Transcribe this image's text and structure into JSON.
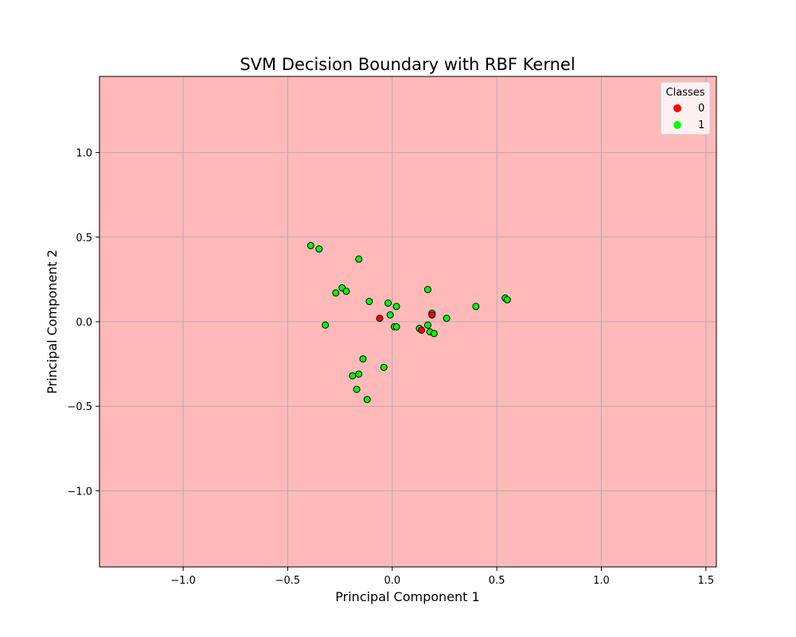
{
  "chart_data": {
    "type": "scatter",
    "title": "SVM Decision Boundary with RBF Kernel",
    "xlabel": "Principal Component 1",
    "ylabel": "Principal Component 2",
    "xlim": [
      -1.4,
      1.55
    ],
    "ylim": [
      -1.45,
      1.45
    ],
    "xticks": [
      -1.0,
      -0.5,
      0.0,
      0.5,
      1.0,
      1.5
    ],
    "xtick_labels": [
      "−1.0",
      "−0.5",
      "0.0",
      "0.5",
      "1.0",
      "1.5"
    ],
    "yticks": [
      -1.0,
      -0.5,
      0.0,
      0.5,
      1.0
    ],
    "ytick_labels": [
      "−1.0",
      "−0.5",
      "0.0",
      "0.5",
      "1.0"
    ],
    "grid": true,
    "background_region_color": "#ffb9b9",
    "legend": {
      "title": "Classes",
      "placement": "top-right",
      "entries": [
        {
          "label": "0",
          "color": "#ff0000"
        },
        {
          "label": "1",
          "color": "#00ff00"
        }
      ]
    },
    "series": [
      {
        "name": "0",
        "color": "#ff0000",
        "points": [
          [
            -0.06,
            0.02
          ],
          [
            0.19,
            0.04
          ],
          [
            0.14,
            -0.05
          ]
        ]
      },
      {
        "name": "1",
        "color": "#00ff00",
        "points": [
          [
            -0.39,
            0.45
          ],
          [
            -0.35,
            0.43
          ],
          [
            -0.16,
            0.37
          ],
          [
            -0.24,
            0.2
          ],
          [
            -0.22,
            0.18
          ],
          [
            -0.27,
            0.17
          ],
          [
            -0.11,
            0.12
          ],
          [
            -0.02,
            0.11
          ],
          [
            0.02,
            0.09
          ],
          [
            -0.01,
            0.04
          ],
          [
            0.17,
            0.19
          ],
          [
            0.19,
            0.05
          ],
          [
            0.26,
            0.02
          ],
          [
            0.4,
            0.09
          ],
          [
            0.54,
            0.14
          ],
          [
            0.55,
            0.13
          ],
          [
            -0.32,
            -0.02
          ],
          [
            0.01,
            -0.03
          ],
          [
            0.02,
            -0.03
          ],
          [
            0.13,
            -0.04
          ],
          [
            0.17,
            -0.02
          ],
          [
            0.18,
            -0.06
          ],
          [
            0.2,
            -0.07
          ],
          [
            -0.14,
            -0.22
          ],
          [
            -0.04,
            -0.27
          ],
          [
            -0.19,
            -0.32
          ],
          [
            -0.16,
            -0.31
          ],
          [
            -0.17,
            -0.4
          ],
          [
            -0.12,
            -0.46
          ]
        ]
      }
    ]
  }
}
